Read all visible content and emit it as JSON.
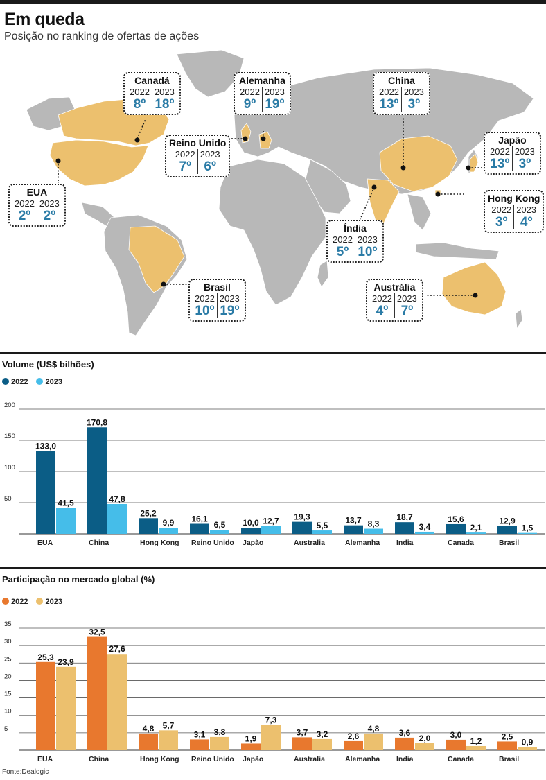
{
  "header": {
    "title": "Em queda",
    "subtitle": "Posição no ranking de ofertas de ações"
  },
  "colors": {
    "map_land": "#b8b8b8",
    "map_highlight": "#ecc06e",
    "volume_2022": "#0b5d86",
    "volume_2023": "#45bde9",
    "share_2022": "#e8782e",
    "share_2023": "#ecc06e",
    "rank_text": "#2a7ba6"
  },
  "map": {
    "year_labels": [
      "2022",
      "2023"
    ],
    "callouts": [
      {
        "country": "Canadá",
        "rank_2022": "8º",
        "rank_2023": "18º"
      },
      {
        "country": "Alemanha",
        "rank_2022": "9º",
        "rank_2023": "19º"
      },
      {
        "country": "China",
        "rank_2022": "13º",
        "rank_2023": "3º"
      },
      {
        "country": "Reino Unido",
        "rank_2022": "7º",
        "rank_2023": "6º"
      },
      {
        "country": "Japão",
        "rank_2022": "13º",
        "rank_2023": "3º"
      },
      {
        "country": "EUA",
        "rank_2022": "2º",
        "rank_2023": "2º"
      },
      {
        "country": "Hong Kong",
        "rank_2022": "3º",
        "rank_2023": "4º"
      },
      {
        "country": "Índia",
        "rank_2022": "5º",
        "rank_2023": "10º"
      },
      {
        "country": "Brasil",
        "rank_2022": "10º",
        "rank_2023": "19º"
      },
      {
        "country": "Austrália",
        "rank_2022": "4º",
        "rank_2023": "7º"
      }
    ]
  },
  "chart_data": [
    {
      "type": "bar",
      "title": "Volume (US$ bilhões)",
      "categories": [
        "EUA",
        "China",
        "Hong Kong",
        "Reino Unido",
        "Japão",
        "Australia",
        "Alemanha",
        "India",
        "Canada",
        "Brasil"
      ],
      "series": [
        {
          "name": "2022",
          "values": [
            133.0,
            170.8,
            25.2,
            16.1,
            10.0,
            19.3,
            13.7,
            18.7,
            15.6,
            12.9
          ],
          "labels": [
            "133,0",
            "170,8",
            "25,2",
            "16,1",
            "10,0",
            "19,3",
            "13,7",
            "18,7",
            "15,6",
            "12,9"
          ]
        },
        {
          "name": "2023",
          "values": [
            41.5,
            47.8,
            9.9,
            6.5,
            12.7,
            5.5,
            8.3,
            3.4,
            2.1,
            1.5
          ],
          "labels": [
            "41,5",
            "47,8",
            "9,9",
            "6,5",
            "12,7",
            "5,5",
            "8,3",
            "3,4",
            "2,1",
            "1,5"
          ]
        }
      ],
      "yticks": [
        50,
        100,
        150,
        200
      ],
      "ylim": [
        0,
        200
      ],
      "grid": true,
      "legend": "top-left"
    },
    {
      "type": "bar",
      "title": "Participação no mercado global (%)",
      "categories": [
        "EUA",
        "China",
        "Hong Kong",
        "Reino Unido",
        "Japão",
        "Australia",
        "Alemanha",
        "India",
        "Canada",
        "Brasil"
      ],
      "series": [
        {
          "name": "2022",
          "values": [
            25.3,
            32.5,
            4.8,
            3.1,
            1.9,
            3.7,
            2.6,
            3.6,
            3.0,
            2.5
          ],
          "labels": [
            "25,3",
            "32,5",
            "4,8",
            "3,1",
            "1,9",
            "3,7",
            "2,6",
            "3,6",
            "3,0",
            "2,5"
          ]
        },
        {
          "name": "2023",
          "values": [
            23.9,
            27.6,
            5.7,
            3.8,
            7.3,
            3.2,
            4.8,
            2.0,
            1.2,
            0.9
          ],
          "labels": [
            "23,9",
            "27,6",
            "5,7",
            "3,8",
            "7,3",
            "3,2",
            "4,8",
            "2,0",
            "1,2",
            "0,9"
          ]
        }
      ],
      "yticks": [
        5,
        10,
        15,
        20,
        25,
        30,
        35
      ],
      "ylim": [
        0,
        35
      ],
      "grid": true,
      "legend": "top-left"
    }
  ],
  "footer": {
    "source": "Fonte:Dealogic"
  }
}
